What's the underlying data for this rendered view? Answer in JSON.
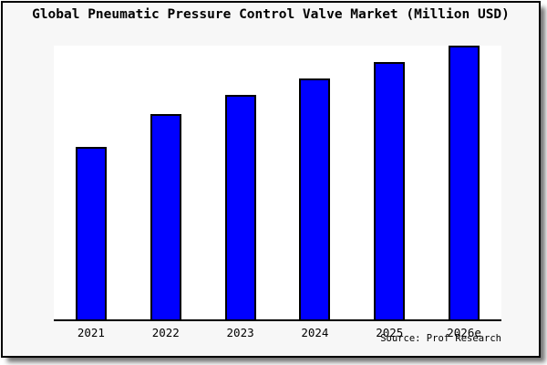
{
  "chart_data": {
    "type": "bar",
    "title": "Global Pneumatic Pressure Control Valve Market (Million USD)",
    "categories": [
      "2021",
      "2022",
      "2023",
      "2024",
      "2025",
      "2026e"
    ],
    "values_pct_of_max": [
      63,
      75,
      82,
      88,
      94,
      100
    ],
    "xlabel": "",
    "ylabel": "",
    "y_axis_visible": false,
    "gridlines": false,
    "legend_position": "none",
    "source_label": "Source: Prof Research",
    "colors": {
      "bar_fill": "#0000ff",
      "bar_border": "#000000",
      "axis_line": "#000000",
      "card_background": "#f7f7f7",
      "plot_background": "#ffffff",
      "text": "#000000"
    }
  }
}
